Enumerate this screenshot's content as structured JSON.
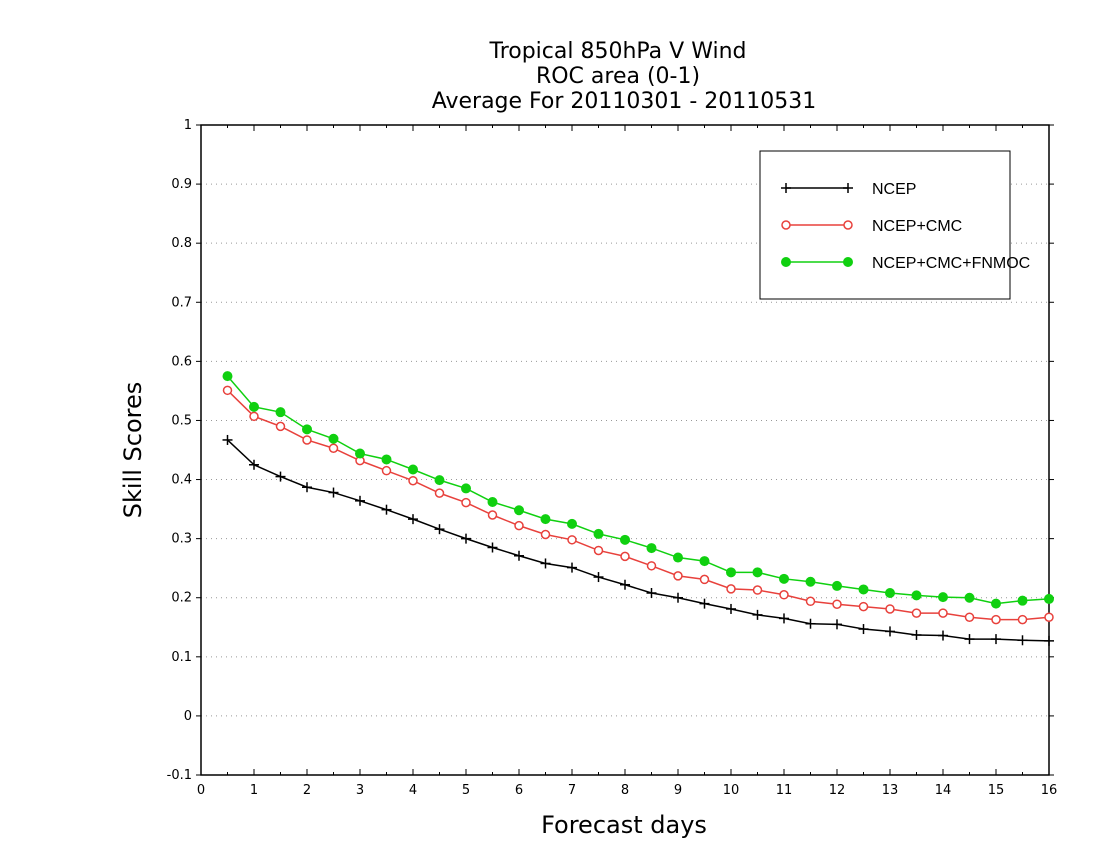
{
  "chart_data": {
    "type": "line",
    "title_lines": [
      "Tropical 850hPa V Wind",
      "ROC area (0-1)",
      "Average For 20110301 - 20110531"
    ],
    "xlabel": "Forecast days",
    "ylabel": "Skill Scores",
    "xlim": [
      0,
      16
    ],
    "ylim": [
      -0.1,
      1
    ],
    "x_ticks": [
      "0",
      "1",
      "2",
      "3",
      "4",
      "5",
      "6",
      "7",
      "8",
      "9",
      "10",
      "11",
      "12",
      "13",
      "14",
      "15",
      "16"
    ],
    "y_ticks": [
      "-0.1",
      "0",
      "0.1",
      "0.2",
      "0.3",
      "0.4",
      "0.5",
      "0.6",
      "0.7",
      "0.8",
      "0.9",
      "1"
    ],
    "grid": "horizontal dotted",
    "legend_position": "top-right",
    "x": [
      0.5,
      1,
      1.5,
      2,
      2.5,
      3,
      3.5,
      4,
      4.5,
      5,
      5.5,
      6,
      6.5,
      7,
      7.5,
      8,
      8.5,
      9,
      9.5,
      10,
      10.5,
      11,
      11.5,
      12,
      12.5,
      13,
      13.5,
      14,
      14.5,
      15,
      15.5,
      16
    ],
    "series": [
      {
        "name": "NCEP",
        "color": "#000000",
        "marker": "plus",
        "values": [
          0.467,
          0.425,
          0.405,
          0.387,
          0.378,
          0.364,
          0.349,
          0.333,
          0.316,
          0.3,
          0.285,
          0.271,
          0.258,
          0.251,
          0.235,
          0.222,
          0.208,
          0.2,
          0.19,
          0.181,
          0.171,
          0.165,
          0.156,
          0.155,
          0.147,
          0.143,
          0.137,
          0.136,
          0.13,
          0.13,
          0.128,
          0.127
        ]
      },
      {
        "name": "NCEP+CMC",
        "color": "#e8413c",
        "marker": "open-circle",
        "values": [
          0.551,
          0.507,
          0.49,
          0.467,
          0.453,
          0.432,
          0.415,
          0.398,
          0.377,
          0.361,
          0.34,
          0.322,
          0.307,
          0.298,
          0.28,
          0.27,
          0.254,
          0.237,
          0.231,
          0.215,
          0.213,
          0.205,
          0.194,
          0.189,
          0.185,
          0.181,
          0.174,
          0.174,
          0.167,
          0.163,
          0.163,
          0.167
        ]
      },
      {
        "name": "NCEP+CMC+FNMOC",
        "color": "#10d010",
        "marker": "filled-circle",
        "values": [
          0.575,
          0.523,
          0.514,
          0.485,
          0.469,
          0.444,
          0.434,
          0.417,
          0.399,
          0.385,
          0.362,
          0.348,
          0.333,
          0.325,
          0.308,
          0.298,
          0.284,
          0.268,
          0.262,
          0.243,
          0.243,
          0.232,
          0.227,
          0.22,
          0.214,
          0.208,
          0.204,
          0.201,
          0.2,
          0.19,
          0.195,
          0.198
        ]
      }
    ]
  }
}
